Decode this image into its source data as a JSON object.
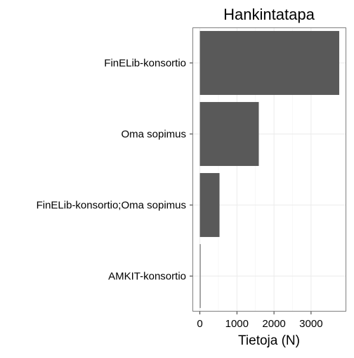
{
  "chart_data": {
    "type": "bar",
    "orientation": "horizontal",
    "title": "Hankintatapa",
    "xlabel": "Tietoja (N)",
    "ylabel": "",
    "categories": [
      "FinELib-konsortio",
      "Oma sopimus",
      "FinELib-konsortio;Oma sopimus",
      "AMKIT-konsortio"
    ],
    "values": [
      3760,
      1590,
      530,
      8
    ],
    "xlim": [
      -200,
      3950
    ],
    "xticks": [
      0,
      1000,
      2000,
      3000
    ],
    "grid": true,
    "colors": {
      "bar": "#595959",
      "grid": "#ebebeb",
      "panel_border": "#808080",
      "text": "#000000"
    }
  }
}
